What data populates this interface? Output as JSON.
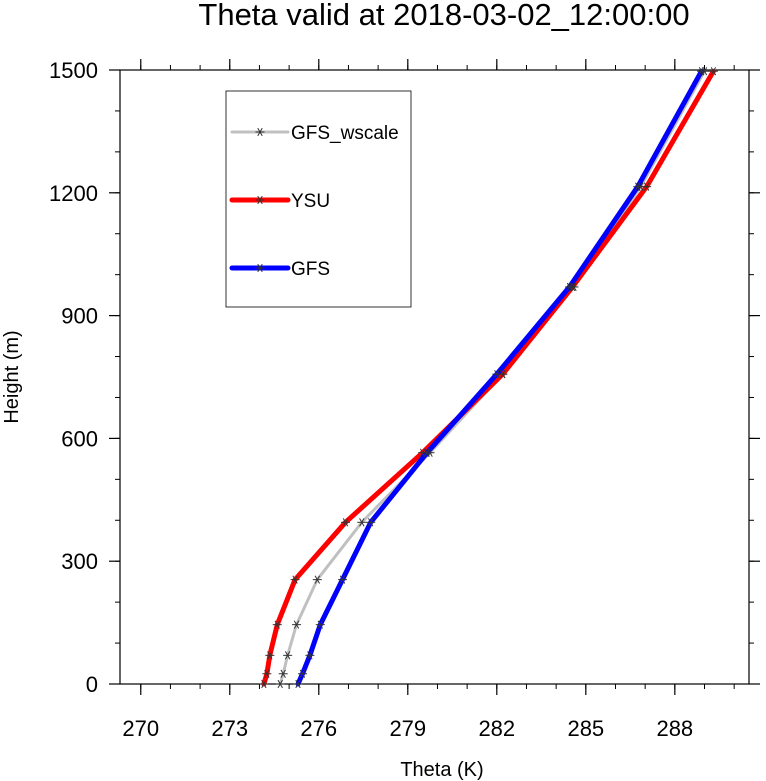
{
  "chart_data": {
    "type": "line",
    "title": "Theta valid at 2018-03-02_12:00:00",
    "xlabel": "Theta (K)",
    "ylabel": "Height (m)",
    "xlim": [
      269.3,
      290.5
    ],
    "ylim": [
      0,
      1500
    ],
    "xticks": [
      270,
      273,
      276,
      279,
      282,
      285,
      288
    ],
    "xtick_labels": [
      "270",
      "273",
      "276",
      "279",
      "282",
      "285",
      "288"
    ],
    "yticks": [
      0,
      300,
      600,
      900,
      1200,
      1500
    ],
    "ytick_labels": [
      "0",
      "300",
      "600",
      "900",
      "1200",
      "1500"
    ],
    "x_minor_step": 1,
    "y_minor_step": 100,
    "grid": false,
    "legend_position": "top-left inside plot",
    "legend_labels": [
      "GFS_wscale",
      "YSU",
      "GFS"
    ],
    "marker": "asterisk",
    "series": [
      {
        "name": "GFS_wscale",
        "color": "#c0c0c0",
        "line_width": 3,
        "x": [
          274.7,
          274.8,
          274.95,
          275.25,
          275.95,
          277.45,
          279.75,
          282.2,
          284.6,
          286.85,
          289.0
        ],
        "y": [
          0,
          25,
          70,
          145,
          255,
          395,
          565,
          757,
          970,
          1215,
          1497
        ]
      },
      {
        "name": "YSU",
        "color": "#ff0000",
        "line_width": 5,
        "x": [
          274.15,
          274.25,
          274.35,
          274.6,
          275.2,
          276.9,
          279.5,
          282.2,
          284.55,
          287.05,
          289.3
        ],
        "y": [
          0,
          25,
          70,
          145,
          255,
          395,
          565,
          757,
          970,
          1215,
          1497
        ]
      },
      {
        "name": "GFS",
        "color": "#0000ff",
        "line_width": 5,
        "x": [
          275.3,
          275.45,
          275.7,
          276.05,
          276.8,
          277.75,
          279.65,
          282.0,
          284.45,
          286.75,
          288.9
        ],
        "y": [
          0,
          25,
          70,
          145,
          255,
          395,
          565,
          757,
          970,
          1215,
          1497
        ]
      }
    ]
  }
}
